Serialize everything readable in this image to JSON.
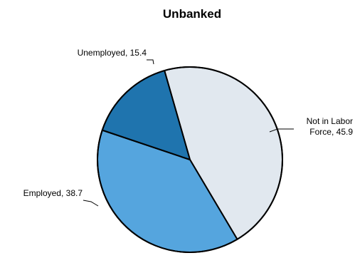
{
  "chart_data": {
    "type": "pie",
    "title": "Unbanked",
    "slices": [
      {
        "name": "Not in Labor Force",
        "value": 45.9,
        "label_lines": [
          "Not in Labor",
          "Force, 45.9"
        ],
        "color": "#e1e8ef"
      },
      {
        "name": "Employed",
        "value": 38.7,
        "label_lines": [
          "Employed, 38.7"
        ],
        "color": "#55a5de"
      },
      {
        "name": "Unemployed",
        "value": 15.4,
        "label_lines": [
          "Unemployed, 15.4"
        ],
        "color": "#1f74ae"
      }
    ],
    "start_angle_deg": -16,
    "direction": "clockwise",
    "legend": "none",
    "labels": "outside-with-leader-lines"
  }
}
